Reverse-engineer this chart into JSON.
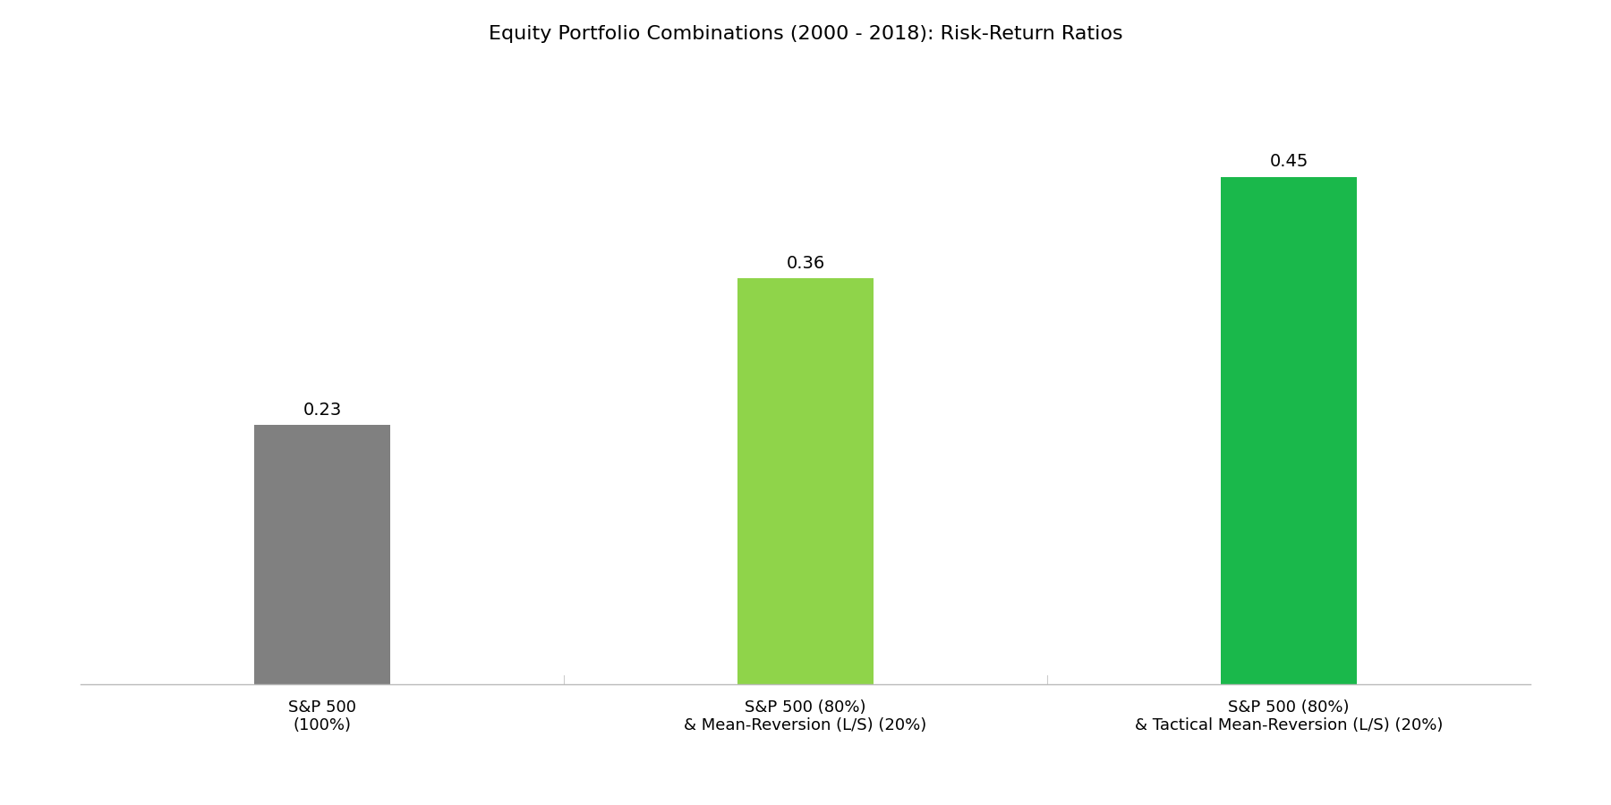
{
  "title": "Equity Portfolio Combinations (2000 - 2018): Risk-Return Ratios",
  "categories": [
    "S&P 500\n(100%)",
    "S&P 500 (80%)\n& Mean-Reversion (L/S) (20%)",
    "S&P 500 (80%)\n& Tactical Mean-Reversion (L/S) (20%)"
  ],
  "values": [
    0.23,
    0.36,
    0.45
  ],
  "bar_colors": [
    "#808080",
    "#8fd44a",
    "#1ab84b"
  ],
  "title_fontsize": 16,
  "tick_fontsize": 13,
  "value_fontsize": 14,
  "background_color": "#ffffff",
  "ylim": [
    0,
    0.55
  ],
  "bar_width": 0.28
}
